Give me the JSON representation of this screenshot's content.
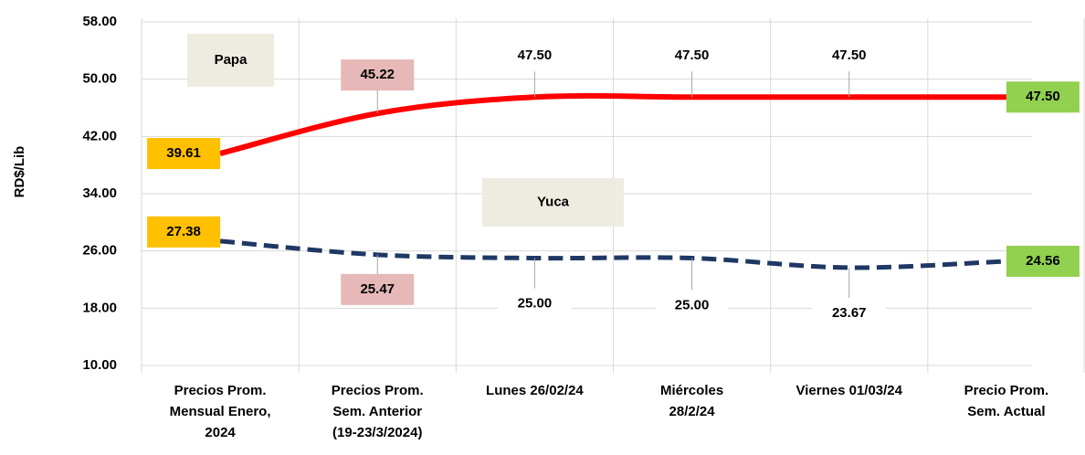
{
  "chart_data": {
    "type": "line",
    "y_label": "RD$/Lib",
    "categories": [
      "Precios Prom.\nMensual Enero,\n2024",
      "Precios Prom.\nSem. Anterior\n(19-23/3/2024)",
      "Lunes  26/02/24",
      "Miércoles\n28/2/24",
      "Viernes 01/03/24",
      "Precio Prom.\nSem. Actual"
    ],
    "series": [
      {
        "name": "Papa",
        "color": "#ff0000",
        "values": [
          39.61,
          45.22,
          47.5,
          47.5,
          47.5,
          47.5
        ],
        "value_labels": [
          "39.61",
          "45.22",
          "47.50",
          "47.50",
          "47.50",
          "47.50"
        ]
      },
      {
        "name": "Yuca",
        "color": "#1f3864",
        "values": [
          27.38,
          25.47,
          25,
          25,
          23.67,
          24.56
        ],
        "value_labels": [
          "27.38",
          "25.47",
          "25.00",
          "25.00",
          "23.67",
          "24.56"
        ]
      }
    ],
    "ylim": [
      10,
      58
    ],
    "yticks": [
      {
        "value": 10,
        "label": "10.00"
      },
      {
        "value": 18,
        "label": "18.00"
      },
      {
        "value": 26,
        "label": "26.00"
      },
      {
        "value": 34,
        "label": "34.00"
      },
      {
        "value": 42,
        "label": "42.00"
      },
      {
        "value": 50,
        "label": "50.00"
      },
      {
        "value": 58,
        "label": "58.00"
      }
    ],
    "grid": true
  }
}
